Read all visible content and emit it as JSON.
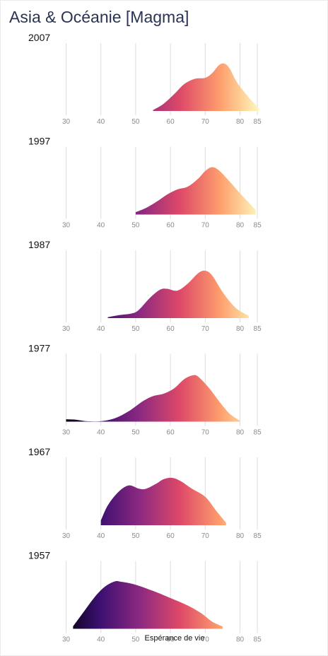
{
  "title": "Asia & Océanie [Magma]",
  "chart_data": {
    "type": "area",
    "title": "Asia & Océanie [Magma]",
    "xlabel": "Espérance de vie",
    "ylabel": "",
    "xlim": [
      28,
      86
    ],
    "xticks": [
      30,
      40,
      50,
      60,
      70,
      80,
      85
    ],
    "grid": true,
    "legend": "none",
    "colormap": "magma",
    "colors": [
      "#000004",
      "#3b0f70",
      "#8c2981",
      "#de4968",
      "#fe9f6d",
      "#fcfdbf"
    ],
    "panels": [
      {
        "year": "2007",
        "x": [
          55.0,
          58.0,
          61.0,
          64.0,
          67.0,
          70.0,
          72.0,
          74.0,
          75.5,
          77.0,
          79.0,
          82.0,
          85.5
        ],
        "density": [
          0.02,
          0.15,
          0.35,
          0.57,
          0.68,
          0.7,
          0.8,
          0.97,
          1.0,
          0.9,
          0.62,
          0.33,
          0.05
        ]
      },
      {
        "year": "1997",
        "x": [
          50.0,
          53.0,
          56.0,
          59.0,
          62.0,
          65.0,
          68.0,
          70.0,
          72.0,
          74.0,
          77.0,
          80.0,
          84.5
        ],
        "density": [
          0.05,
          0.14,
          0.27,
          0.42,
          0.53,
          0.59,
          0.76,
          0.92,
          1.0,
          0.93,
          0.7,
          0.45,
          0.1
        ]
      },
      {
        "year": "1987",
        "x": [
          42.0,
          45.0,
          49.0,
          51.0,
          54.0,
          57.0,
          59.0,
          62.0,
          65.0,
          68.0,
          70.0,
          72.0,
          75.0,
          78.0,
          80.0,
          82.5
        ],
        "density": [
          0.02,
          0.06,
          0.1,
          0.18,
          0.42,
          0.6,
          0.62,
          0.58,
          0.73,
          0.95,
          1.0,
          0.9,
          0.55,
          0.27,
          0.15,
          0.05
        ]
      },
      {
        "year": "1977",
        "x": [
          30.0,
          33.0,
          36.0,
          40.0,
          44.0,
          48.0,
          52.0,
          55.0,
          58.0,
          61.0,
          64.0,
          66.5,
          68.0,
          71.0,
          74.0,
          77.0,
          80.0
        ],
        "density": [
          0.05,
          0.04,
          0.01,
          0.01,
          0.07,
          0.22,
          0.43,
          0.54,
          0.59,
          0.7,
          0.9,
          0.98,
          0.95,
          0.72,
          0.43,
          0.17,
          0.02
        ]
      },
      {
        "year": "1967",
        "x": [
          40.0,
          42.0,
          45.0,
          48.0,
          51.0,
          53.0,
          56.0,
          58.0,
          60.5,
          63.0,
          66.0,
          70.0,
          73.0,
          76.0
        ],
        "density": [
          0.1,
          0.42,
          0.7,
          0.84,
          0.77,
          0.77,
          0.88,
          0.97,
          1.0,
          0.93,
          0.78,
          0.6,
          0.32,
          0.05
        ]
      },
      {
        "year": "1957",
        "x": [
          32.0,
          35.0,
          38.0,
          41.0,
          44.0,
          46.0,
          50.0,
          55.0,
          60.0,
          65.0,
          69.0,
          72.0,
          75.0
        ],
        "density": [
          0.05,
          0.35,
          0.65,
          0.88,
          1.0,
          0.99,
          0.93,
          0.8,
          0.65,
          0.49,
          0.32,
          0.15,
          0.05
        ]
      }
    ]
  }
}
